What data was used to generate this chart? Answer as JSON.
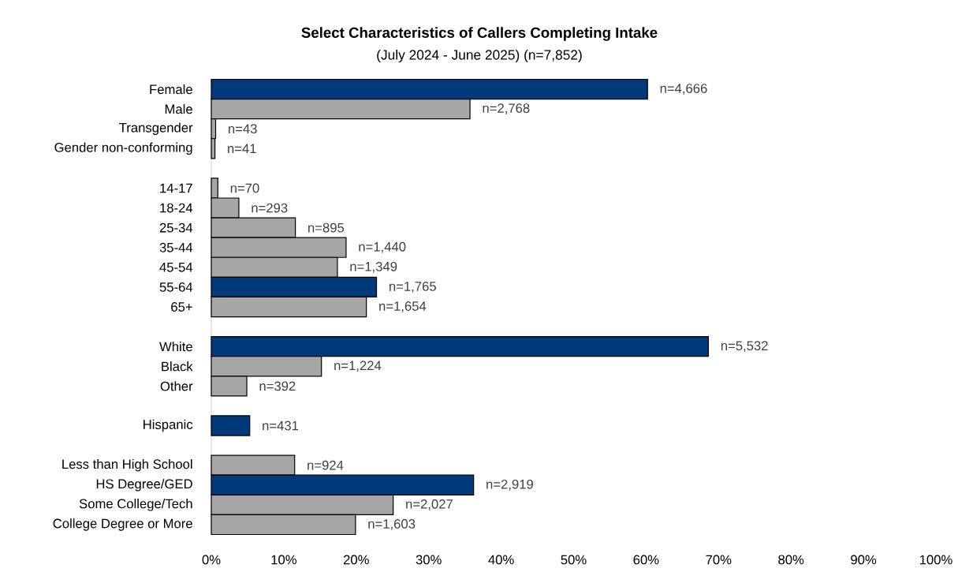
{
  "chart_data": {
    "type": "bar",
    "orientation": "horizontal",
    "title": "Select Characteristics of Callers Completing Intake",
    "subtitle": "(July 2024 - June 2025) (n=7,852)",
    "categories": [
      "Female",
      "Male",
      "Transgender",
      "Gender non-conforming",
      null,
      "14-17",
      "18-24",
      "25-34",
      "35-44",
      "45-54",
      "55-64",
      "65+",
      null,
      "White",
      "Black",
      "Other",
      null,
      "Hispanic",
      null,
      "Less than High School",
      "HS Degree/GED",
      "Some College/Tech",
      "College Degree or More"
    ],
    "values": [
      60.2,
      35.7,
      0.6,
      0.5,
      null,
      0.9,
      3.8,
      11.6,
      18.6,
      17.4,
      22.8,
      21.4,
      null,
      68.6,
      15.2,
      4.9,
      null,
      5.3,
      null,
      11.5,
      36.2,
      25.1,
      19.9
    ],
    "colors": [
      "#003a7a",
      "#a6a6a6",
      "#a6a6a6",
      "#a6a6a6",
      null,
      "#a6a6a6",
      "#a6a6a6",
      "#a6a6a6",
      "#a6a6a6",
      "#a6a6a6",
      "#003a7a",
      "#a6a6a6",
      null,
      "#003a7a",
      "#a6a6a6",
      "#a6a6a6",
      null,
      "#003a7a",
      null,
      "#a6a6a6",
      "#003a7a",
      "#a6a6a6",
      "#a6a6a6"
    ],
    "annotations": [
      {
        "text": "n=4,666",
        "x": 60.2,
        "y": "Female"
      },
      {
        "text": "n=2,768",
        "x": 35.7,
        "y": "Male"
      },
      {
        "text": "n=43",
        "x": 0.6,
        "y": "Transgender"
      },
      {
        "text": "n=41",
        "x": 0.5,
        "y": "Gender non-conforming"
      },
      {
        "text": "n=70",
        "x": 0.9,
        "y": "14-17"
      },
      {
        "text": "n=293",
        "x": 3.8,
        "y": "18-24"
      },
      {
        "text": "n=895",
        "x": 11.6,
        "y": "25-34"
      },
      {
        "text": "n=1,440",
        "x": 18.6,
        "y": "35-44"
      },
      {
        "text": "n=1,349",
        "x": 17.4,
        "y": "45-54"
      },
      {
        "text": "n=1,765",
        "x": 22.8,
        "y": "55-64"
      },
      {
        "text": "n=1,654",
        "x": 21.4,
        "y": "65+"
      },
      {
        "text": "n=5,532",
        "x": 68.6,
        "y": "White"
      },
      {
        "text": "n=1,224",
        "x": 15.2,
        "y": "Black"
      },
      {
        "text": "n=392",
        "x": 4.9,
        "y": "Other"
      },
      {
        "text": "n=431",
        "x": 5.3,
        "y": "Hispanic"
      },
      {
        "text": "n=924",
        "x": 11.5,
        "y": "Less than High School"
      },
      {
        "text": "n=2,919",
        "x": 36.2,
        "y": "HS Degree/GED"
      },
      {
        "text": "n=2,027",
        "x": 25.1,
        "y": "Some College/Tech"
      },
      {
        "text": "n=1,603",
        "x": 19.9,
        "y": "College Degree or More"
      }
    ],
    "xlim": [
      0,
      100
    ],
    "xticks": [
      {
        "value": 0,
        "label": "0%"
      },
      {
        "value": 10,
        "label": "10%"
      },
      {
        "value": 20,
        "label": "20%"
      },
      {
        "value": 30,
        "label": "30%"
      },
      {
        "value": 40,
        "label": "40%"
      },
      {
        "value": 50,
        "label": "50%"
      },
      {
        "value": 60,
        "label": "60%"
      },
      {
        "value": 70,
        "label": "70%"
      },
      {
        "value": 80,
        "label": "80%"
      },
      {
        "value": 90,
        "label": "90%"
      },
      {
        "value": 100,
        "label": "100%"
      }
    ]
  }
}
